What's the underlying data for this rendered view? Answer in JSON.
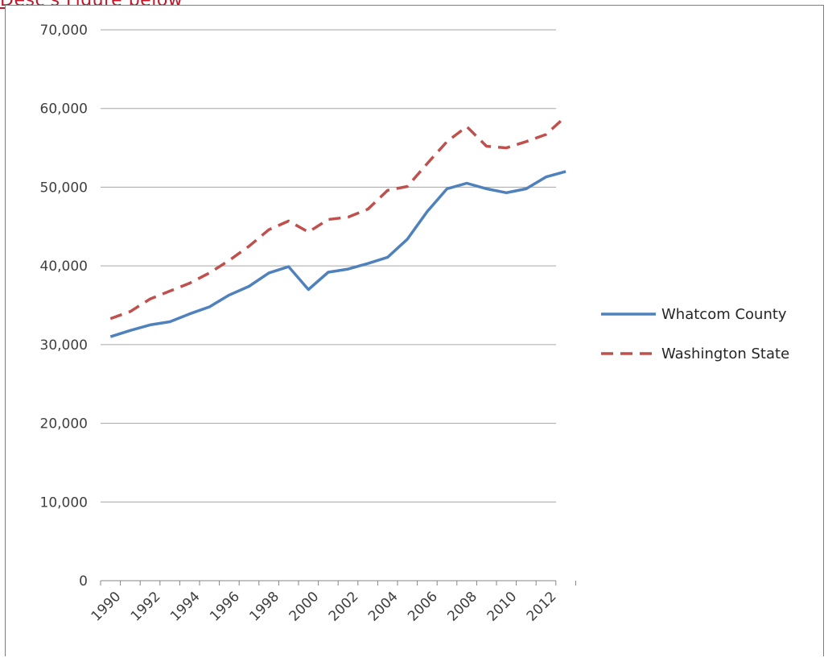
{
  "header": {
    "link_text": "Desc's Figure below"
  },
  "colors": {
    "whatcom": "#4f81bd",
    "washington": "#c0504d",
    "gridline": "#a6a6a6",
    "link": "#c0182a"
  },
  "chart_data": {
    "type": "line",
    "title": "",
    "xlabel": "",
    "ylabel": "",
    "ylim": [
      0,
      70000
    ],
    "yticks": [
      0,
      10000,
      20000,
      30000,
      40000,
      50000,
      60000,
      70000
    ],
    "ytick_labels": [
      "0",
      "10,000",
      "20,000",
      "30,000",
      "40,000",
      "50,000",
      "60,000",
      "70,000"
    ],
    "x": [
      1990,
      1991,
      1992,
      1993,
      1994,
      1995,
      1996,
      1997,
      1998,
      1999,
      2000,
      2001,
      2002,
      2003,
      2004,
      2005,
      2006,
      2007,
      2008,
      2009,
      2010,
      2011,
      2012,
      2013
    ],
    "xtick_labels": [
      "1990",
      "1992",
      "1994",
      "1996",
      "1998",
      "2000",
      "2002",
      "2004",
      "2006",
      "2008",
      "2010",
      "2012"
    ],
    "grid": true,
    "legend": "right",
    "series": [
      {
        "name": "Whatcom County",
        "style": "solid",
        "color": "#4f81bd",
        "values": [
          31000,
          31800,
          32500,
          32900,
          33900,
          34800,
          36300,
          37400,
          39100,
          39900,
          37000,
          39200,
          39600,
          40300,
          41100,
          43400,
          46900,
          49800,
          50500,
          49800,
          49300,
          49800,
          51300,
          52000
        ]
      },
      {
        "name": "Washington State",
        "style": "dashed",
        "color": "#c0504d",
        "values": [
          33300,
          34200,
          35800,
          36800,
          37800,
          39100,
          40700,
          42500,
          44600,
          45700,
          44300,
          45900,
          46200,
          47200,
          49600,
          50100,
          53000,
          55800,
          57700,
          55200,
          55000,
          55800,
          56700,
          59000
        ]
      }
    ]
  }
}
